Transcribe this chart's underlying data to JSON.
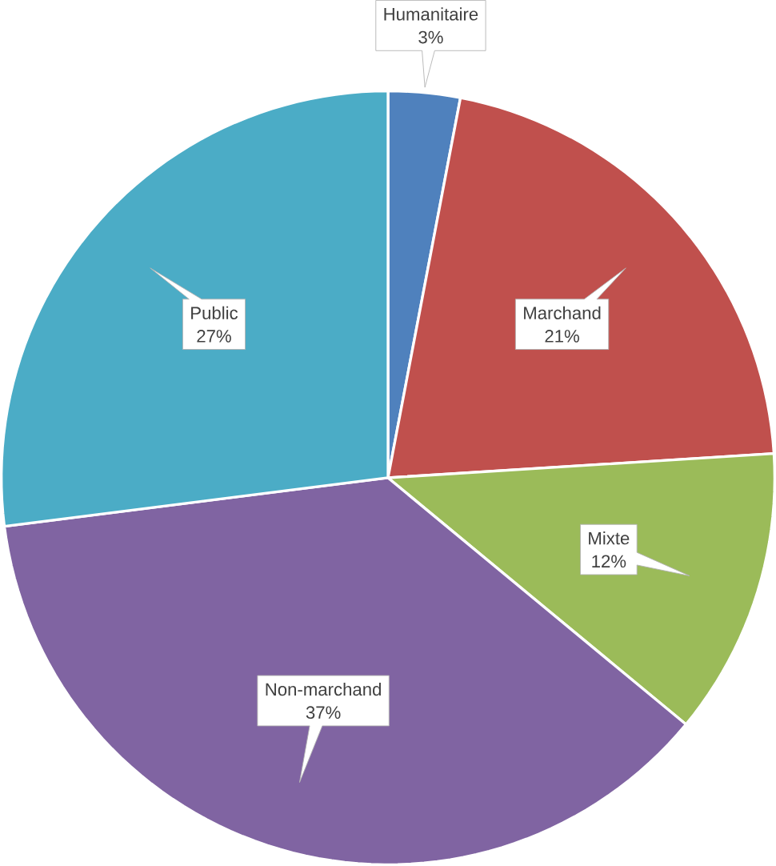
{
  "chart_data": {
    "type": "pie",
    "categories": [
      "Humanitaire",
      "Marchand",
      "Mixte",
      "Non-marchand",
      "Public"
    ],
    "values": [
      3,
      21,
      12,
      37,
      27
    ],
    "value_labels": [
      "3%",
      "21%",
      "12%",
      "37%",
      "27%"
    ],
    "colors": [
      "#4f81bd",
      "#c0504d",
      "#9bbb59",
      "#8064a2",
      "#4bacc6"
    ]
  }
}
